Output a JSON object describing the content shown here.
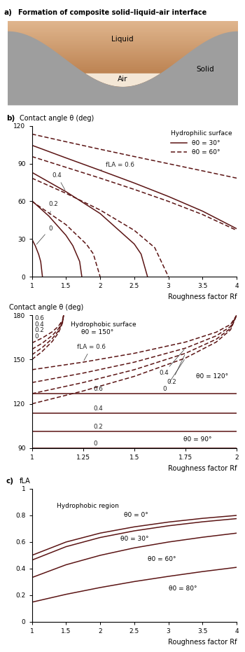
{
  "diagram": {
    "panel": "a)",
    "title": "Formation of composite solid–liquid–air interface",
    "labels": {
      "liquid": "Liquid",
      "air": "Air",
      "solid": "Solid"
    }
  },
  "chart_data": [
    {
      "type": "line",
      "panel": "b)",
      "ylabel": "Contact angle θ (deg)",
      "xlabel": "Roughness factor Rf",
      "annotations": [
        "Hydrophilic surface"
      ],
      "legend": "upper right",
      "xlim": [
        1,
        4
      ],
      "ylim": [
        0,
        120
      ],
      "xticks": [
        1,
        1.5,
        2,
        2.5,
        3,
        3.5,
        4
      ],
      "yticks": [
        0,
        30,
        60,
        90,
        120
      ],
      "series": [
        {
          "name": "θ0 = 30°",
          "color": "#5b1414",
          "line_style": "solid",
          "curves": [
            {
              "label": "0",
              "x": [
                1,
                1.05,
                1.1,
                1.13,
                1.155
              ],
              "values": [
                30,
                24.6,
                17.7,
                11.9,
                0
              ]
            },
            {
              "label": "0.2",
              "x": [
                1,
                1.25,
                1.5,
                1.6,
                1.7,
                1.732
              ],
              "values": [
                60.5,
                48.2,
                32.9,
                24.7,
                12.1,
                0
              ]
            },
            {
              "label": "0.4",
              "x": [
                1,
                1.5,
                2,
                2.5,
                2.6,
                2.694
              ],
              "values": [
                83.1,
                67.7,
                50.3,
                26.0,
                18.0,
                0
              ]
            },
            {
              "label": "fLA = 0.6",
              "x": [
                1,
                1.5,
                2,
                2.5,
                3,
                3.5,
                4
              ],
              "values": [
                104.7,
                94.6,
                84.7,
                74.6,
                63.9,
                52.2,
                38.2
              ]
            }
          ]
        },
        {
          "name": "θ0 = 60°",
          "color": "#5b1414",
          "line_style": "dashed",
          "curves": [
            {
              "x": [
                1,
                1.5,
                1.8,
                1.9,
                2
              ],
              "values": [
                60,
                41.4,
                25.8,
                18.2,
                0
              ]
            },
            {
              "x": [
                1,
                1.5,
                2,
                2.5,
                2.8,
                3
              ],
              "values": [
                78.5,
                66.4,
                53.1,
                36.9,
                23.1,
                0
              ]
            },
            {
              "x": [
                1,
                1.5,
                2,
                2.5,
                3,
                3.5,
                4
              ],
              "values": [
                95.7,
                87.1,
                78.5,
                69.5,
                60,
                49.5,
                36.9
              ]
            },
            {
              "x": [
                1,
                1.5,
                2,
                2.5,
                3,
                3.5,
                4
              ],
              "values": [
                113.6,
                107.5,
                101.5,
                95.7,
                90,
                84.3,
                78.5
              ]
            }
          ]
        }
      ]
    },
    {
      "type": "line",
      "ylabel": "Contact angle θ (deg)",
      "xlabel": "Roughness factor Rf",
      "annotations": [
        "Hydrophobic surface"
      ],
      "xlim": [
        1,
        2
      ],
      "ylim": [
        90,
        180
      ],
      "xticks": [
        1,
        1.25,
        1.5,
        1.75,
        2
      ],
      "yticks": [
        90,
        120,
        150,
        180
      ],
      "series": [
        {
          "name": "θ0 = 150°",
          "color": "#5b1414",
          "line_style": "dashed",
          "curves": [
            {
              "label": "0",
              "x": [
                1,
                1.05,
                1.1,
                1.13,
                1.15,
                1.155
              ],
              "values": [
                150,
                155.4,
                162.3,
                168.1,
                174.8,
                180
              ]
            },
            {
              "label": "0.2",
              "x": [
                1,
                1.05,
                1.1,
                1.13,
                1.15,
                1.155
              ],
              "values": [
                153.2,
                158.0,
                164.2,
                169.4,
                175.4,
                180
              ]
            },
            {
              "label": "0.4",
              "x": [
                1,
                1.05,
                1.1,
                1.13,
                1.15,
                1.155
              ],
              "values": [
                156.9,
                161.0,
                166.3,
                170.8,
                176.0,
                180
              ]
            },
            {
              "label": "0.6",
              "x": [
                1,
                1.05,
                1.1,
                1.13,
                1.15,
                1.155
              ],
              "values": [
                161.2,
                164.5,
                168.8,
                172.5,
                176.8,
                180
              ]
            }
          ]
        },
        {
          "name": "θ0 = 120°",
          "color": "#5b1414",
          "line_style": "dashed",
          "curves": [
            {
              "label": "0",
              "x": [
                1,
                1.25,
                1.5,
                1.75,
                1.9,
                1.97,
                2
              ],
              "values": [
                120,
                128.7,
                138.6,
                151.0,
                161.8,
                170.1,
                180
              ]
            },
            {
              "label": "0.2",
              "x": [
                1,
                1.25,
                1.5,
                1.75,
                1.9,
                1.97,
                2
              ],
              "values": [
                126.9,
                134.4,
                143.1,
                154.2,
                163.7,
                171.1,
                180
              ]
            },
            {
              "label": "0.4",
              "x": [
                1,
                1.25,
                1.5,
                1.75,
                1.9,
                1.97,
                2
              ],
              "values": [
                134.4,
                140.8,
                148.2,
                157.7,
                166.0,
                172.3,
                180
              ]
            },
            {
              "label": "fLA = 0.6",
              "x": [
                1,
                1.25,
                1.5,
                1.75,
                1.9,
                1.97,
                2
              ],
              "values": [
                143.1,
                148.2,
                154.2,
                161.8,
                168.5,
                173.7,
                180
              ]
            }
          ]
        },
        {
          "name": "θ0 = 90°",
          "color": "#5b1414",
          "line_style": "solid",
          "curves": [
            {
              "label": "0",
              "x": [
                1,
                2
              ],
              "values": [
                90,
                90
              ]
            },
            {
              "label": "0.2",
              "x": [
                1,
                2
              ],
              "values": [
                101.5,
                101.5
              ]
            },
            {
              "label": "0.4",
              "x": [
                1,
                2
              ],
              "values": [
                113.6,
                113.6
              ]
            },
            {
              "label": "0.6",
              "x": [
                1,
                2
              ],
              "values": [
                126.9,
                126.9
              ]
            }
          ]
        }
      ]
    },
    {
      "type": "line",
      "panel": "c)",
      "ylabel": "fLA",
      "xlabel": "Roughness factor Rf",
      "annotations": [
        "Hydrophobic region"
      ],
      "xlim": [
        1,
        4
      ],
      "ylim": [
        0,
        1
      ],
      "xticks": [
        1,
        1.5,
        2,
        2.5,
        3,
        3.5,
        4
      ],
      "yticks": [
        0,
        0.2,
        0.4,
        0.6,
        0.8,
        1
      ],
      "series": [
        {
          "name": "θ0 = 0°",
          "color": "#5b1414",
          "line_style": "solid",
          "curves": [
            {
              "x": [
                1,
                1.5,
                2,
                2.5,
                3,
                3.5,
                4
              ],
              "values": [
                0.5,
                0.6,
                0.667,
                0.714,
                0.75,
                0.778,
                0.8
              ]
            }
          ]
        },
        {
          "name": "θ0 = 30°",
          "color": "#5b1414",
          "line_style": "solid",
          "curves": [
            {
              "x": [
                1,
                1.5,
                2,
                2.5,
                3,
                3.5,
                4
              ],
              "values": [
                0.464,
                0.565,
                0.634,
                0.684,
                0.722,
                0.752,
                0.776
              ]
            }
          ]
        },
        {
          "name": "θ0 = 60°",
          "color": "#5b1414",
          "line_style": "solid",
          "curves": [
            {
              "x": [
                1,
                1.5,
                2,
                2.5,
                3,
                3.5,
                4
              ],
              "values": [
                0.333,
                0.429,
                0.5,
                0.556,
                0.6,
                0.636,
                0.667
              ]
            }
          ]
        },
        {
          "name": "θ0 = 80°",
          "color": "#5b1414",
          "line_style": "solid",
          "curves": [
            {
              "x": [
                1,
                1.5,
                2,
                2.5,
                3,
                3.5,
                4
              ],
              "values": [
                0.148,
                0.207,
                0.258,
                0.303,
                0.342,
                0.378,
                0.41
              ]
            }
          ]
        }
      ]
    }
  ]
}
